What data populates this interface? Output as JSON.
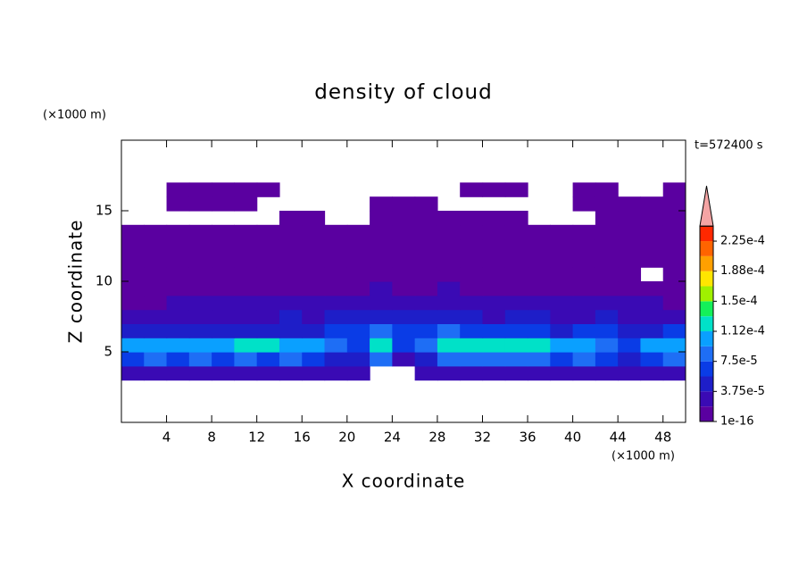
{
  "chart_data": {
    "type": "contour",
    "title": "density of cloud",
    "x_label": "X coordinate",
    "y_label": "Z coordinate",
    "x_unit": "(×1000 m)",
    "y_unit": "(×1000 m)",
    "time_label": "t=572400 s",
    "xlim": [
      0,
      50
    ],
    "ylim": [
      0,
      20
    ],
    "xticks": [
      4,
      8,
      12,
      16,
      20,
      24,
      28,
      32,
      36,
      40,
      44,
      48
    ],
    "yticks": [
      5,
      10,
      15
    ],
    "x": [
      1,
      3,
      5,
      7,
      9,
      11,
      13,
      15,
      17,
      19,
      21,
      23,
      25,
      27,
      29,
      31,
      33,
      35,
      37,
      39,
      41,
      43,
      45,
      47,
      49
    ],
    "y": [
      3.5,
      4.5,
      5.5,
      6.5,
      7.5,
      8.5,
      9.5,
      10.5,
      11.5,
      12.5,
      13.5,
      14.5,
      15.5,
      16.5
    ],
    "z": [
      [
        2e-05,
        2e-05,
        2e-05,
        2e-05,
        2e-05,
        2e-05,
        2e-05,
        2e-05,
        2e-05,
        2e-05,
        2e-05,
        null,
        null,
        2e-05,
        2e-05,
        2e-05,
        2e-05,
        2e-05,
        2e-05,
        2e-05,
        2e-05,
        2e-05,
        2e-05,
        2e-05,
        2e-05
      ],
      [
        7e-05,
        8e-05,
        7e-05,
        8e-05,
        7e-05,
        8e-05,
        7e-05,
        8e-05,
        6e-05,
        5e-05,
        4e-05,
        8e-05,
        3e-05,
        5e-05,
        9e-05,
        9e-05,
        8e-05,
        9e-05,
        8e-05,
        7e-05,
        8e-05,
        6e-05,
        5e-05,
        7e-05,
        8e-05
      ],
      [
        0.0001,
        0.000105,
        0.00011,
        0.000105,
        0.00011,
        0.00012,
        0.000115,
        0.00011,
        0.0001,
        8e-05,
        6e-05,
        0.00012,
        6e-05,
        8e-05,
        0.000115,
        0.00013,
        0.000125,
        0.00012,
        0.00012,
        0.00011,
        0.0001,
        8e-05,
        7e-05,
        0.0001,
        0.000105
      ],
      [
        5e-05,
        4e-05,
        5e-05,
        4e-05,
        4e-05,
        5e-05,
        4e-05,
        4e-05,
        5e-05,
        6e-05,
        6e-05,
        8e-05,
        7e-05,
        7e-05,
        8e-05,
        7e-05,
        7e-05,
        6e-05,
        6e-05,
        5e-05,
        6e-05,
        6e-05,
        5e-05,
        5e-05,
        6e-05
      ],
      [
        2e-05,
        3e-05,
        3e-05,
        3e-05,
        3e-05,
        3e-05,
        3e-05,
        4e-05,
        3e-05,
        4e-05,
        4e-05,
        4e-05,
        5e-05,
        4e-05,
        4e-05,
        4e-05,
        3e-05,
        4e-05,
        4e-05,
        3e-05,
        3e-05,
        4e-05,
        3e-05,
        3e-05,
        3e-05
      ],
      [
        1e-05,
        1e-05,
        2e-05,
        2e-05,
        2e-05,
        2e-05,
        2e-05,
        2e-05,
        2e-05,
        2e-05,
        2e-05,
        2e-05,
        3e-05,
        2e-05,
        2e-05,
        2e-05,
        2e-05,
        2e-05,
        2e-05,
        2e-05,
        2e-05,
        2e-05,
        2e-05,
        2e-05,
        1e-05
      ],
      [
        1e-05,
        1e-05,
        1e-05,
        1e-05,
        1e-05,
        1e-05,
        1e-05,
        1e-05,
        1e-05,
        1e-05,
        1e-05,
        2e-05,
        1e-05,
        1e-05,
        2e-05,
        1e-05,
        1e-05,
        1e-05,
        1e-05,
        1e-05,
        1e-05,
        1e-05,
        1e-05,
        1e-05,
        1e-05
      ],
      [
        5e-06,
        5e-06,
        5e-06,
        5e-06,
        5e-06,
        5e-06,
        5e-06,
        5e-06,
        5e-06,
        5e-06,
        5e-06,
        5e-06,
        5e-06,
        5e-06,
        5e-06,
        5e-06,
        5e-06,
        5e-06,
        5e-06,
        5e-06,
        5e-06,
        5e-06,
        5e-06,
        null,
        5e-06
      ],
      [
        3e-06,
        3e-06,
        3e-06,
        3e-06,
        3e-06,
        3e-06,
        3e-06,
        3e-06,
        3e-06,
        3e-06,
        3e-06,
        3e-06,
        3e-06,
        3e-06,
        3e-06,
        3e-06,
        3e-06,
        3e-06,
        3e-06,
        3e-06,
        3e-06,
        3e-06,
        3e-06,
        3e-06,
        3e-06
      ],
      [
        1e-06,
        1e-06,
        1e-06,
        1e-06,
        1e-06,
        1e-06,
        1e-06,
        1e-06,
        1e-06,
        1e-06,
        1e-06,
        1e-06,
        1e-06,
        1e-06,
        1e-06,
        1e-06,
        1e-06,
        1e-06,
        1e-06,
        1e-06,
        1e-06,
        1e-06,
        1e-06,
        1e-06,
        1e-06
      ],
      [
        1e-06,
        1e-06,
        1e-06,
        1e-06,
        1e-06,
        1e-06,
        1e-06,
        1e-06,
        1e-06,
        1e-06,
        1e-06,
        1e-06,
        1e-06,
        1e-06,
        1e-06,
        1e-06,
        1e-06,
        1e-06,
        1e-06,
        1e-06,
        1e-06,
        1e-06,
        1e-06,
        1e-06,
        1e-06
      ],
      [
        null,
        null,
        null,
        null,
        null,
        null,
        null,
        1e-06,
        1e-06,
        null,
        null,
        1e-06,
        1e-06,
        1e-06,
        1e-06,
        1e-06,
        1e-06,
        1e-06,
        null,
        null,
        null,
        1e-06,
        1e-06,
        1e-06,
        1e-06
      ],
      [
        null,
        null,
        1e-06,
        1e-06,
        1e-06,
        1e-06,
        null,
        null,
        null,
        null,
        null,
        1e-06,
        1e-06,
        1e-06,
        null,
        null,
        null,
        null,
        null,
        null,
        1e-06,
        1e-06,
        1e-06,
        1e-06,
        1e-06
      ],
      [
        null,
        null,
        1e-06,
        1e-06,
        1e-06,
        1e-06,
        1e-06,
        null,
        null,
        null,
        null,
        null,
        null,
        null,
        null,
        1e-06,
        1e-06,
        1e-06,
        null,
        null,
        1e-06,
        1e-06,
        null,
        null,
        1e-06
      ]
    ],
    "levels": [
      1e-16,
      1.875e-05,
      3.75e-05,
      5.625e-05,
      7.5e-05,
      9.375e-05,
      0.0001125,
      0.00013125,
      0.00015,
      0.00016875,
      0.0001875,
      0.00020625,
      0.000225,
      0.00024375
    ],
    "colors": [
      "#5a00a0",
      "#3a0ab4",
      "#1e1ec8",
      "#0a3ce6",
      "#1e6ef5",
      "#0aa0ff",
      "#00e1c8",
      "#14f05a",
      "#a0f000",
      "#ffe600",
      "#ffa000",
      "#ff6400",
      "#ff2800"
    ],
    "extend_color": "#f4a4a4",
    "colorbar_ticks": [
      {
        "value": 1e-16,
        "label": "1e-16"
      },
      {
        "value": 3.75e-05,
        "label": "3.75e-5"
      },
      {
        "value": 7.5e-05,
        "label": "7.5e-5"
      },
      {
        "value": 0.0001125,
        "label": "1.12e-4"
      },
      {
        "value": 0.00015,
        "label": "1.5e-4"
      },
      {
        "value": 0.0001875,
        "label": "1.88e-4"
      },
      {
        "value": 0.000225,
        "label": "2.25e-4"
      }
    ]
  }
}
